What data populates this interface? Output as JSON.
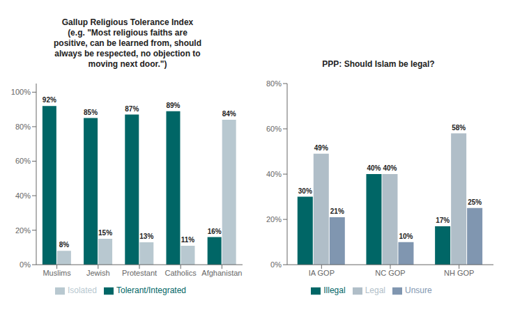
{
  "chart_data": [
    {
      "type": "bar",
      "title": "Gallup Religious Tolerance Index\n(e.g. \"Most religious faiths are\npositive, can be learned from, should\nalways be respected, no objection to\nmoving next door.\")",
      "categories": [
        "Muslims",
        "Jewish",
        "Protestant",
        "Catholics",
        "Afghanistan"
      ],
      "series": [
        {
          "name": "Tolerant/Integrated",
          "color": "#006666",
          "values": [
            92,
            85,
            87,
            89,
            16
          ],
          "value_labels": [
            "92%",
            "85%",
            "87%",
            "89%",
            "16%"
          ]
        },
        {
          "name": "Isolated",
          "color": "#b8c8d0",
          "values": [
            8,
            15,
            13,
            11,
            84
          ],
          "value_labels": [
            "8%",
            "15%",
            "13%",
            "11%",
            "84%"
          ]
        }
      ],
      "ylim": [
        0,
        105
      ],
      "yticks": [
        {
          "value": 0,
          "label": "0%"
        },
        {
          "value": 20,
          "label": "20%"
        },
        {
          "value": 40,
          "label": "40%"
        },
        {
          "value": 60,
          "label": "60%"
        },
        {
          "value": 80,
          "label": "80%"
        },
        {
          "value": 100,
          "label": "100%"
        }
      ],
      "grid": false,
      "legend": "bottom",
      "data_labels": true
    },
    {
      "type": "bar",
      "title": "PPP: Should Islam be legal?",
      "categories": [
        "IA GOP",
        "NC GOP",
        "NH GOP"
      ],
      "series": [
        {
          "name": "Illegal",
          "color": "#006666",
          "values": [
            30,
            40,
            17
          ],
          "value_labels": [
            "30%",
            "40%",
            "17%"
          ]
        },
        {
          "name": "Legal",
          "color": "#b0bec8",
          "values": [
            49,
            40,
            58
          ],
          "value_labels": [
            "49%",
            "40%",
            "58%"
          ]
        },
        {
          "name": "Unsure",
          "color": "#8096b0",
          "values": [
            21,
            10,
            25
          ],
          "value_labels": [
            "21%",
            "10%",
            "25%"
          ]
        }
      ],
      "ylim": [
        0,
        80
      ],
      "yticks": [
        {
          "value": 0,
          "label": "0%"
        },
        {
          "value": 20,
          "label": "20%"
        },
        {
          "value": 40,
          "label": "40%"
        },
        {
          "value": 60,
          "label": "60%"
        },
        {
          "value": 80,
          "label": "80%"
        }
      ],
      "grid": false,
      "legend": "bottom",
      "data_labels": true
    }
  ]
}
